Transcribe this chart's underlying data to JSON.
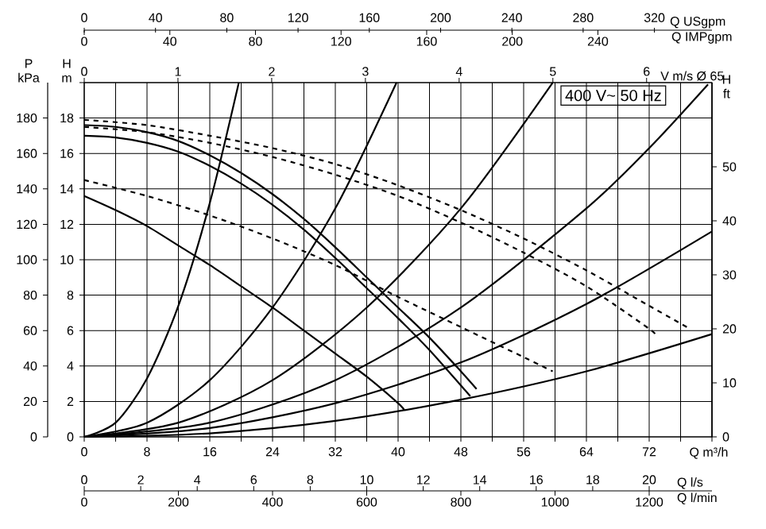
{
  "chart_data": {
    "type": "line",
    "xlabel": "Q m³/h",
    "ylabel": "H m",
    "y2label": "H ft",
    "y3label": "P kPa",
    "x2label": "Q USgpm",
    "xlim": [
      0,
      80
    ],
    "xticks": [
      0,
      {
        "value": 4,
        "label": null
      },
      8,
      {
        "value": 12,
        "label": null
      },
      16,
      {
        "value": 20,
        "label": null
      },
      24,
      {
        "value": 28,
        "label": null
      },
      32,
      {
        "value": 36,
        "label": null
      },
      40,
      {
        "value": 44,
        "label": null
      },
      48,
      {
        "value": 52,
        "label": null
      },
      56,
      {
        "value": 60,
        "label": null
      },
      64,
      {
        "value": 68,
        "label": null
      },
      72,
      {
        "value": 76,
        "label": null
      },
      {
        "value": 80,
        "label": null
      }
    ],
    "ylim": [
      0,
      20
    ],
    "yticks": [
      0,
      2,
      4,
      6,
      8,
      10,
      12,
      14,
      16,
      18,
      {
        "value": 20,
        "label": null
      }
    ],
    "y2lim": [
      0,
      65.6
    ],
    "y2ticks": [
      0,
      10,
      20,
      30,
      40,
      50
    ],
    "y3lim": [
      0,
      200
    ],
    "y3ticks": [
      0,
      20,
      40,
      60,
      80,
      100,
      120,
      140,
      160,
      180
    ],
    "x2lim": [
      0,
      352.3
    ],
    "x2ticks": [
      0,
      40,
      80,
      120,
      160,
      200,
      240,
      280,
      320
    ],
    "grid": true,
    "annotations": [
      "400 V~ 50 Hz",
      "0",
      "40",
      "80",
      "120",
      "160",
      "200",
      "240",
      "Q IMPgpm",
      "0",
      "1",
      "2",
      "3",
      "4",
      "5",
      "6",
      "V m/s Ø 65",
      "0",
      "2",
      "4",
      "6",
      "8",
      "10",
      "12",
      "14",
      "16",
      "18",
      "20",
      "Q l/s",
      "0",
      "200",
      "400",
      "600",
      "800",
      "1000",
      "1200",
      "Q l/min"
    ],
    "series": [
      {
        "color": "#000000",
        "line_style": "solid",
        "x": [
          0,
          4,
          8,
          12,
          16,
          20,
          24,
          28,
          32,
          36,
          40,
          44,
          48,
          50
        ],
        "values": [
          17.6,
          17.5,
          17.2,
          16.7,
          15.9,
          14.9,
          13.7,
          12.3,
          10.7,
          9.0,
          7.3,
          5.6,
          3.7,
          2.7
        ]
      },
      {
        "color": "#000000",
        "line_style": "solid",
        "x": [
          0,
          4,
          8,
          12,
          16,
          20,
          24,
          28,
          32,
          36,
          40,
          44,
          48,
          49.2
        ],
        "values": [
          17.0,
          16.9,
          16.6,
          16.1,
          15.3,
          14.3,
          13.1,
          11.7,
          10.1,
          8.4,
          6.7,
          4.9,
          2.9,
          2.3
        ]
      },
      {
        "color": "#000000",
        "line_style": "solid",
        "x": [
          0,
          4,
          8,
          12,
          16,
          20,
          24,
          28,
          32,
          36,
          40,
          40.8
        ],
        "values": [
          13.6,
          12.8,
          11.9,
          10.8,
          9.7,
          8.5,
          7.3,
          6.0,
          4.7,
          3.4,
          1.9,
          1.5
        ]
      },
      {
        "color": "#000000",
        "line_style": "dashed",
        "x": [
          0,
          8,
          16,
          24,
          32,
          40,
          48,
          56,
          64,
          72,
          76.8
        ],
        "values": [
          17.9,
          17.6,
          17.0,
          16.3,
          15.4,
          14.2,
          12.8,
          11.2,
          9.4,
          7.4,
          6.2
        ]
      },
      {
        "color": "#000000",
        "line_style": "dashed",
        "x": [
          0,
          8,
          16,
          24,
          32,
          40,
          48,
          56,
          64,
          72,
          72.8
        ],
        "values": [
          17.5,
          17.2,
          16.6,
          15.8,
          14.8,
          13.6,
          12.1,
          10.4,
          8.5,
          6.1,
          5.7
        ]
      },
      {
        "color": "#000000",
        "line_style": "dashed",
        "x": [
          0,
          8,
          16,
          24,
          32,
          40,
          48,
          56,
          59.7
        ],
        "values": [
          14.5,
          13.6,
          12.5,
          11.2,
          9.7,
          7.9,
          6.2,
          4.5,
          3.7
        ]
      },
      {
        "color": "#000000",
        "line_style": "solid",
        "x": [
          0,
          4,
          8,
          12,
          16,
          19.7
        ],
        "values": [
          0,
          0.8,
          3.3,
          7.4,
          13.2,
          20
        ]
      },
      {
        "color": "#000000",
        "line_style": "solid",
        "x": [
          0,
          8,
          16,
          24,
          32,
          39.8
        ],
        "values": [
          0,
          0.8,
          3.2,
          7.3,
          12.9,
          20
        ]
      },
      {
        "color": "#000000",
        "line_style": "solid",
        "x": [
          0,
          12,
          24,
          36,
          48,
          59.7
        ],
        "values": [
          0,
          0.8,
          3.2,
          7.3,
          12.9,
          20
        ]
      },
      {
        "color": "#000000",
        "line_style": "solid",
        "x": [
          0,
          16,
          32,
          48,
          64,
          72,
          79.5
        ],
        "values": [
          0,
          0.8,
          3.2,
          7.3,
          12.9,
          16.3,
          19.9
        ]
      },
      {
        "color": "#000000",
        "line_style": "solid",
        "x": [
          0,
          16,
          32,
          48,
          64,
          80
        ],
        "values": [
          0,
          0.5,
          1.9,
          4.2,
          7.5,
          11.6
        ]
      },
      {
        "color": "#000000",
        "line_style": "solid",
        "x": [
          0,
          16,
          32,
          48,
          64,
          80
        ],
        "values": [
          0,
          0.2,
          0.9,
          2.1,
          3.7,
          5.8
        ]
      }
    ]
  }
}
